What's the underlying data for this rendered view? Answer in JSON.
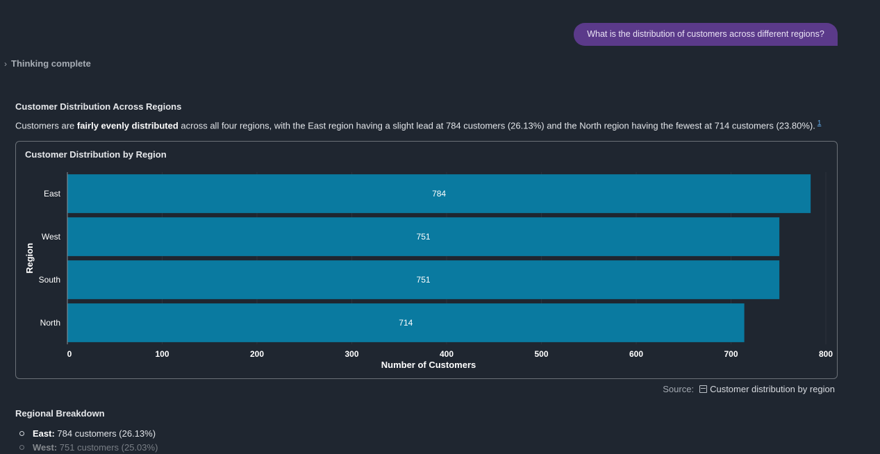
{
  "user_message": "What is the distribution of customers across different regions?",
  "thinking_label": "Thinking complete",
  "response": {
    "heading": "Customer Distribution Across Regions",
    "intro_pre": "Customers are ",
    "intro_bold": "fairly evenly distributed",
    "intro_post": " across all four regions, with the East region having a slight lead at 784 customers (26.13%) and the North region having the fewest at 714 customers (23.80%).",
    "citation": "1"
  },
  "chart_data": {
    "type": "bar",
    "orientation": "horizontal",
    "title": "Customer Distribution by Region",
    "categories": [
      "East",
      "West",
      "South",
      "North"
    ],
    "values": [
      784,
      751,
      751,
      714
    ],
    "xlabel": "Number of Customers",
    "ylabel": "Region",
    "xlim": [
      0,
      800
    ],
    "xticks": [
      "0",
      "100",
      "200",
      "300",
      "400",
      "500",
      "600",
      "700",
      "800"
    ],
    "grid": true,
    "bar_color": "#0a7aa0"
  },
  "source": {
    "label": "Source:",
    "link_text": "Customer distribution by region"
  },
  "breakdown": {
    "heading": "Regional Breakdown",
    "items": [
      {
        "name": "East:",
        "text": "784 customers (26.13%)"
      },
      {
        "name": "West:",
        "text": "751 customers (25.03%)"
      }
    ]
  }
}
